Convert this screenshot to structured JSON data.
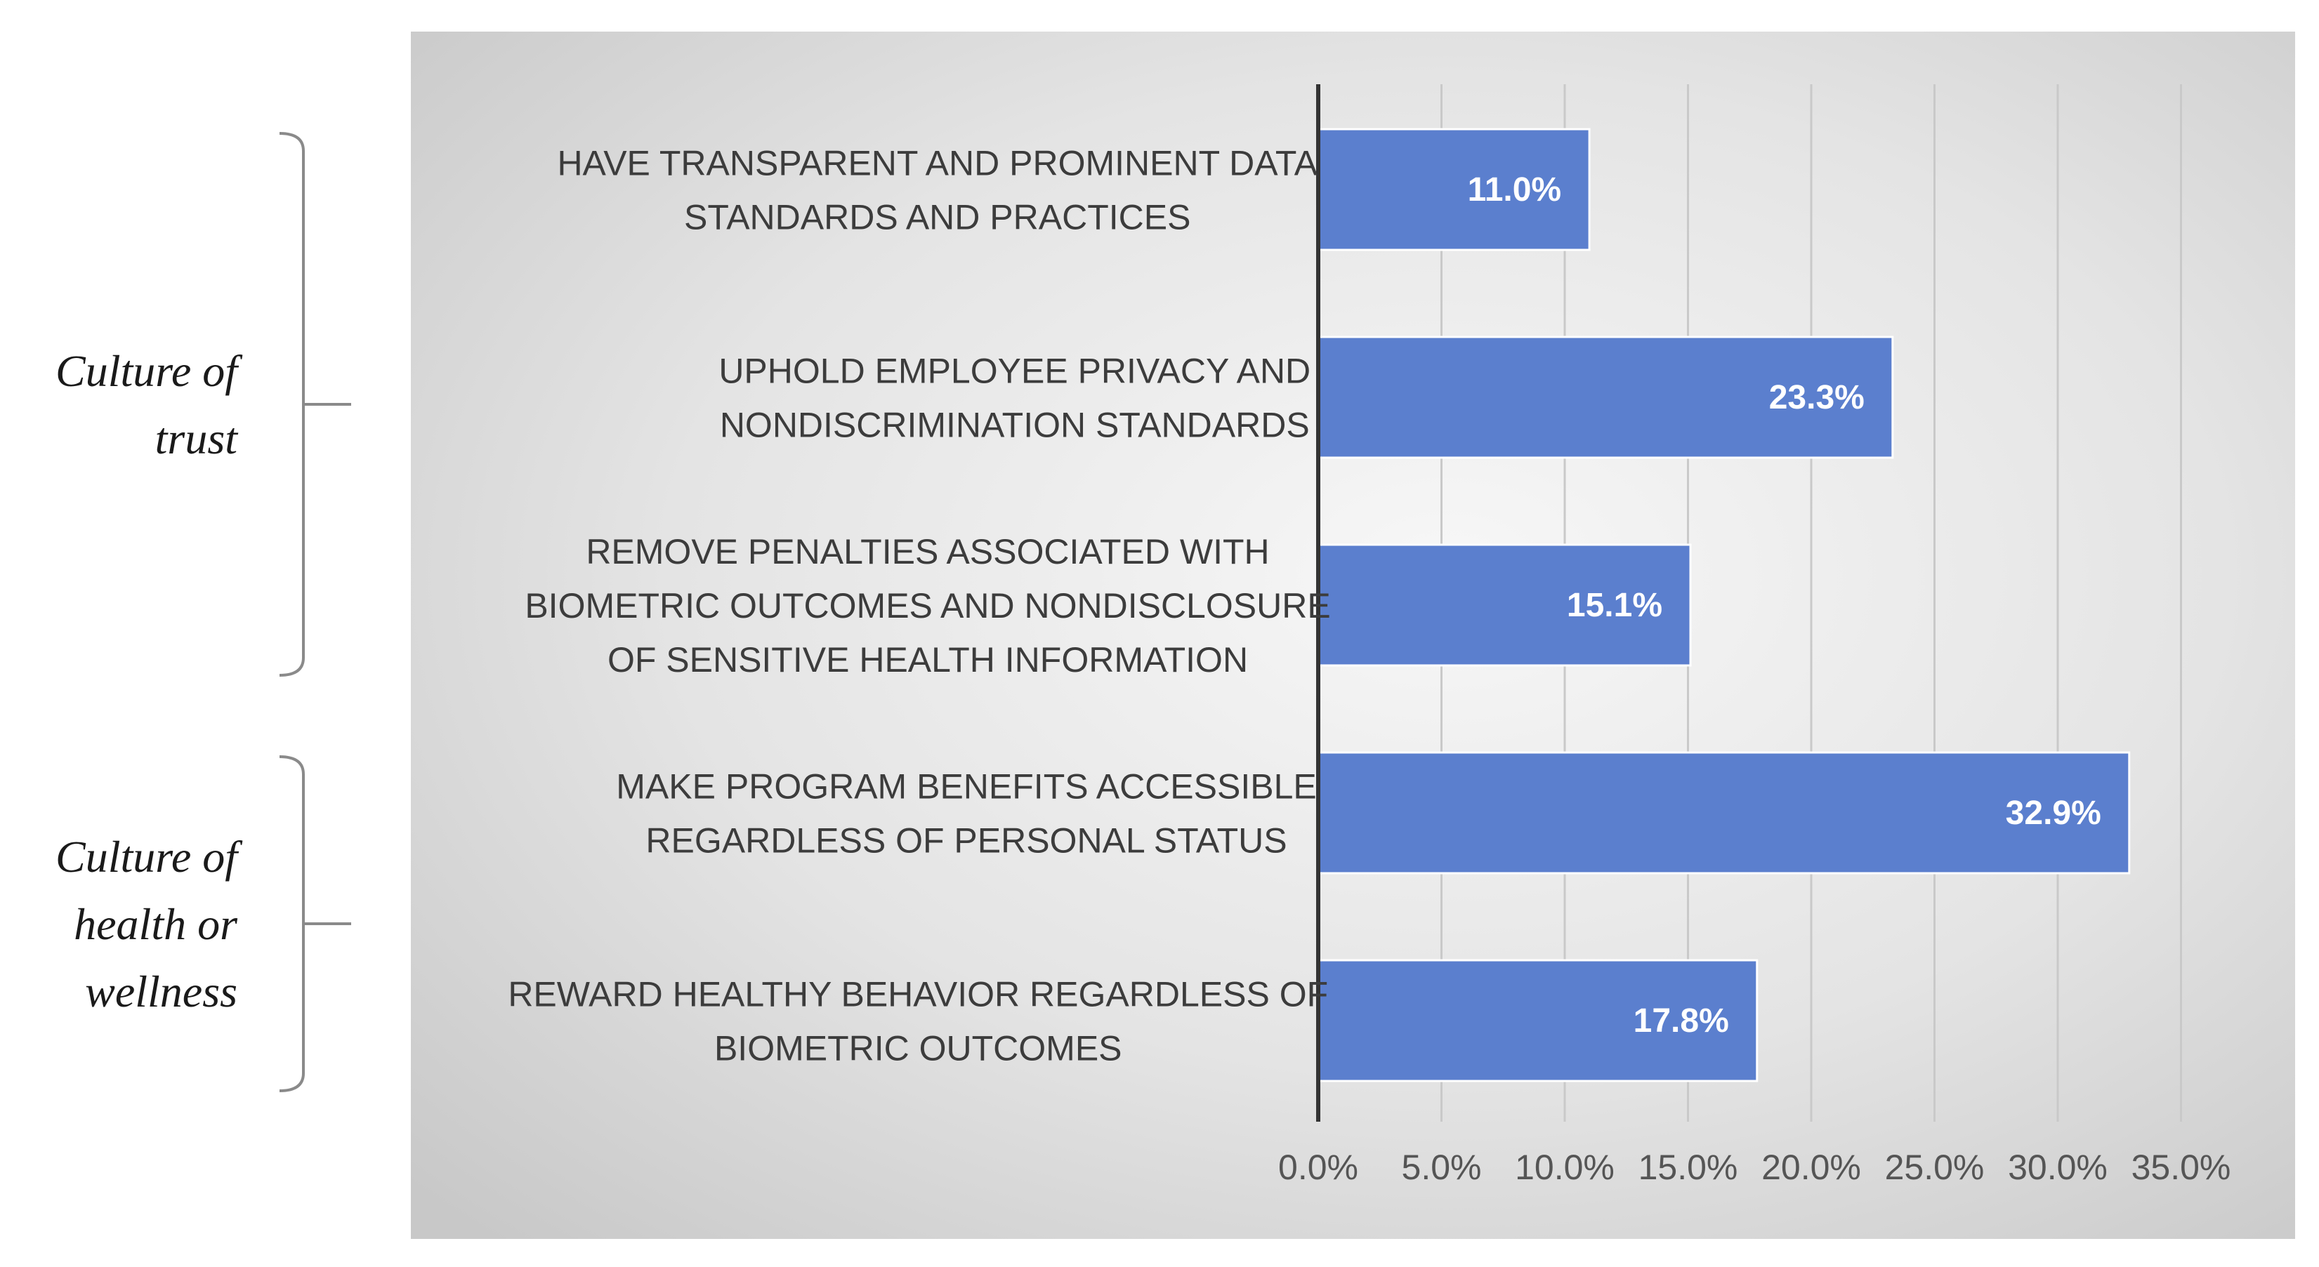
{
  "chart_data": {
    "type": "bar",
    "orientation": "horizontal",
    "categories": [
      [
        "HAVE TRANSPARENT AND PROMINENT DATA",
        "STANDARDS AND PRACTICES"
      ],
      [
        "UPHOLD EMPLOYEE PRIVACY AND",
        "NONDISCRIMINATION STANDARDS"
      ],
      [
        "REMOVE PENALTIES ASSOCIATED WITH",
        "BIOMETRIC OUTCOMES AND NONDISCLOSURE",
        "OF SENSITIVE HEALTH INFORMATION"
      ],
      [
        "MAKE PROGRAM BENEFITS ACCESSIBLE",
        "REGARDLESS OF PERSONAL STATUS"
      ],
      [
        "REWARD HEALTHY BEHAVIOR REGARDLESS OF",
        "BIOMETRIC OUTCOMES"
      ]
    ],
    "values": [
      11.0,
      23.3,
      15.1,
      32.9,
      17.8
    ],
    "data_labels": [
      "11.0%",
      "23.3%",
      "15.1%",
      "32.9%",
      "17.8%"
    ],
    "xlim": [
      0,
      35
    ],
    "x_ticks": [
      0,
      5,
      10,
      15,
      20,
      25,
      30,
      35
    ],
    "x_tick_labels": [
      "0.0%",
      "5.0%",
      "10.0%",
      "15.0%",
      "20.0%",
      "25.0%",
      "30.0%",
      "35.0%"
    ],
    "grid": true,
    "bar_color": "#5b7fce",
    "title": "",
    "xlabel": "",
    "ylabel": "",
    "groups": [
      {
        "lines": [
          "Culture of",
          "trust"
        ],
        "category_range": [
          0,
          2
        ]
      },
      {
        "lines": [
          "Culture of",
          "health or",
          "wellness"
        ],
        "category_range": [
          3,
          4
        ]
      }
    ]
  }
}
